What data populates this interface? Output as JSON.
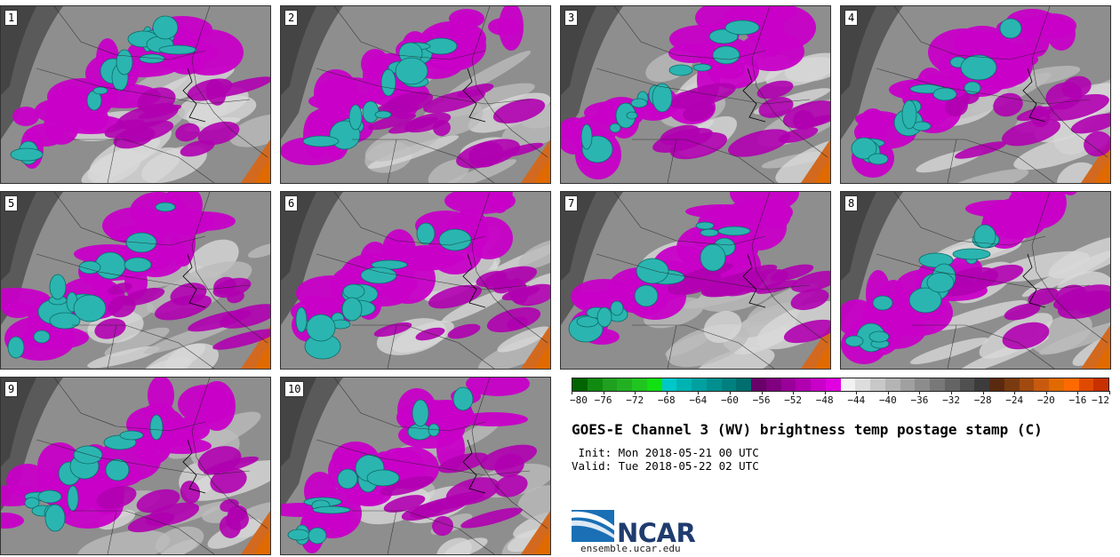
{
  "panels": [
    {
      "label": "1"
    },
    {
      "label": "2"
    },
    {
      "label": "3"
    },
    {
      "label": "4"
    },
    {
      "label": "5"
    },
    {
      "label": "6"
    },
    {
      "label": "7"
    },
    {
      "label": "8"
    },
    {
      "label": "9"
    },
    {
      "label": "10"
    }
  ],
  "colorbar": {
    "tick_labels": [
      "−80",
      "−76",
      "−72",
      "−68",
      "−64",
      "−60",
      "−56",
      "−52",
      "−48",
      "−44",
      "−40",
      "−36",
      "−32",
      "−28",
      "−24",
      "−20",
      "−16",
      "−12"
    ],
    "colors": [
      "#006400",
      "#118a11",
      "#1fa01f",
      "#22b022",
      "#20c520",
      "#11e011",
      "#00c8c8",
      "#00b3b3",
      "#00a0a0",
      "#008f8f",
      "#007f7f",
      "#006e6e",
      "#6a006a",
      "#800080",
      "#990099",
      "#b000b0",
      "#c800c8",
      "#e000e0",
      "#f2f2f2",
      "#dddddd",
      "#c8c8c8",
      "#b4b4b4",
      "#a0a0a0",
      "#8c8c8c",
      "#787878",
      "#646464",
      "#505050",
      "#3c3c3c",
      "#5a2a10",
      "#7a3a10",
      "#a04a10",
      "#c85a10",
      "#e06a00",
      "#ff6a00",
      "#e04a00",
      "#c83000"
    ]
  },
  "title": "GOES-E Channel 3 (WV) brightness temp postage stamp (C)",
  "init_text": " Init: Mon 2018-05-21 00 UTC",
  "valid_text": "Valid: Tue 2018-05-22 02 UTC",
  "logo_text": "NCAR",
  "site": "ensemble.ucar.edu"
}
